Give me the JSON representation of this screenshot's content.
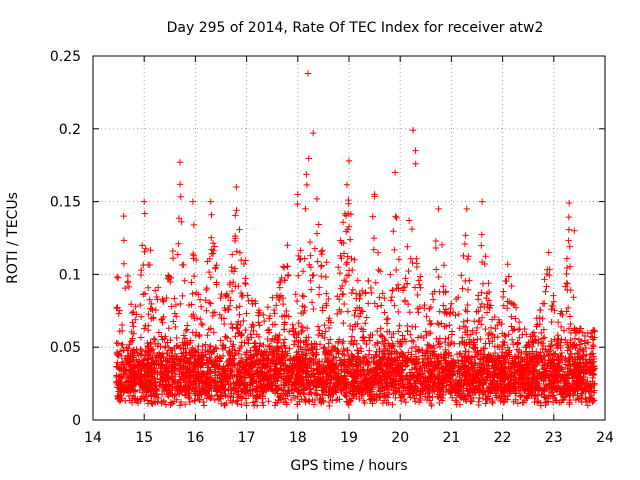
{
  "chart_data": {
    "type": "scatter",
    "title": "Day 295 of 2014, Rate Of TEC Index for receiver atw2",
    "xlabel": "GPS time / hours",
    "ylabel": "ROTI / TECUs",
    "xlim": [
      14,
      24
    ],
    "ylim": [
      0,
      0.25
    ],
    "x_ticks": [
      "14",
      "15",
      "16",
      "17",
      "18",
      "19",
      "20",
      "21",
      "22",
      "23",
      "24"
    ],
    "y_ticks": [
      "0",
      "0.05",
      "0.1",
      "0.15",
      "0.2",
      "0.25"
    ],
    "grid": true,
    "marker": "+",
    "marker_color": "#ff0000",
    "x_data_range": [
      14.45,
      23.8
    ],
    "baseline_roti": 0.02,
    "peaks": [
      {
        "x": 14.6,
        "y": 0.14
      },
      {
        "x": 15.0,
        "y": 0.15
      },
      {
        "x": 15.7,
        "y": 0.177
      },
      {
        "x": 15.95,
        "y": 0.15
      },
      {
        "x": 16.3,
        "y": 0.15
      },
      {
        "x": 16.8,
        "y": 0.16
      },
      {
        "x": 17.8,
        "y": 0.12
      },
      {
        "x": 18.0,
        "y": 0.155
      },
      {
        "x": 18.2,
        "y": 0.238
      },
      {
        "x": 18.3,
        "y": 0.197
      },
      {
        "x": 19.0,
        "y": 0.178
      },
      {
        "x": 19.5,
        "y": 0.155
      },
      {
        "x": 19.9,
        "y": 0.17
      },
      {
        "x": 20.25,
        "y": 0.199
      },
      {
        "x": 20.3,
        "y": 0.185
      },
      {
        "x": 20.75,
        "y": 0.145
      },
      {
        "x": 21.3,
        "y": 0.145
      },
      {
        "x": 21.6,
        "y": 0.15
      },
      {
        "x": 22.1,
        "y": 0.107
      },
      {
        "x": 22.9,
        "y": 0.115
      },
      {
        "x": 23.3,
        "y": 0.149
      },
      {
        "x": 23.4,
        "y": 0.13
      }
    ]
  }
}
